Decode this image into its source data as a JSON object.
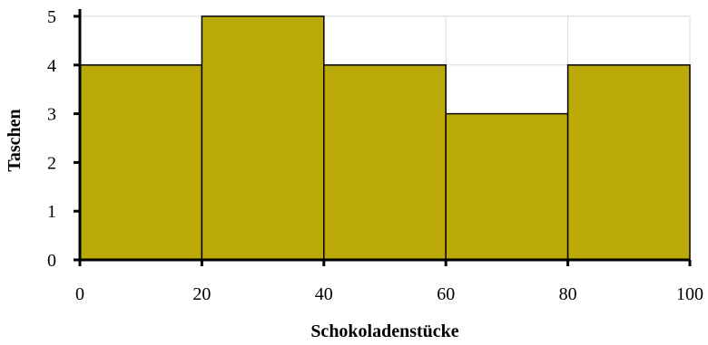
{
  "chart_data": {
    "type": "bar",
    "bins": [
      [
        0,
        20
      ],
      [
        20,
        40
      ],
      [
        40,
        60
      ],
      [
        60,
        80
      ],
      [
        80,
        100
      ]
    ],
    "values": [
      4,
      5,
      4,
      3,
      4
    ],
    "xlabel": "Schokoladenstücke",
    "ylabel": "Taschen",
    "xlim": [
      0,
      100
    ],
    "ylim": [
      0,
      5
    ],
    "xticks": [
      0,
      20,
      40,
      60,
      80,
      100
    ],
    "yticks": [
      0,
      1,
      2,
      3,
      4,
      5
    ],
    "grid": true,
    "bar_color": "#baa906"
  }
}
